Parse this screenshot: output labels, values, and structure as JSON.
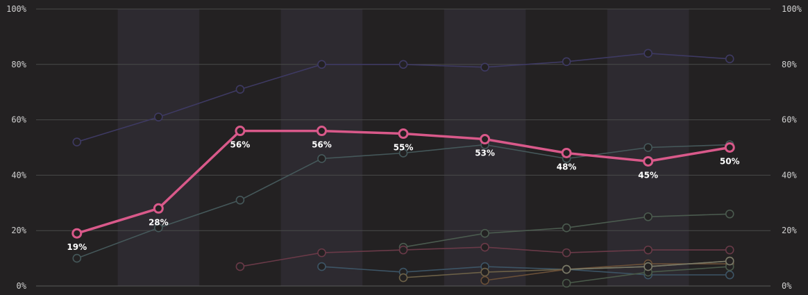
{
  "chart_data": {
    "type": "line",
    "x_count": 9,
    "ylim": [
      0,
      100
    ],
    "y_ticks": [
      0,
      20,
      40,
      60,
      80,
      100
    ],
    "y_tick_labels": [
      "0%",
      "20%",
      "40%",
      "60%",
      "80%",
      "100%"
    ],
    "grid": true,
    "legend": "none",
    "background_color": "#232122",
    "band_color": "#2d2a30",
    "highlight": {
      "color": "#d9598a",
      "values": [
        19,
        28,
        56,
        56,
        55,
        53,
        48,
        45,
        50
      ],
      "labels": [
        "19%",
        "28%",
        "56%",
        "56%",
        "55%",
        "53%",
        "48%",
        "45%",
        "50%"
      ]
    },
    "series": [
      {
        "color": "#3e3a63",
        "values": [
          52,
          61,
          71,
          80,
          80,
          79,
          81,
          84,
          82
        ]
      },
      {
        "color": "#45585a",
        "values": [
          10,
          21,
          31,
          46,
          48,
          51,
          46,
          50,
          51
        ]
      },
      {
        "color": "#4b5b4f",
        "values": [
          null,
          null,
          null,
          null,
          14,
          19,
          21,
          25,
          26
        ]
      },
      {
        "color": "#6a3a48",
        "values": [
          null,
          null,
          7,
          12,
          13,
          14,
          12,
          13,
          13
        ]
      },
      {
        "color": "#3d5566",
        "values": [
          null,
          null,
          null,
          7,
          5,
          7,
          6,
          4,
          4
        ]
      },
      {
        "color": "#6e6248",
        "values": [
          null,
          null,
          null,
          null,
          3,
          5,
          6,
          7,
          9
        ]
      },
      {
        "color": "#6b5038",
        "values": [
          null,
          null,
          null,
          null,
          null,
          2,
          6,
          8,
          8
        ]
      },
      {
        "color": "#4a5a4a",
        "values": [
          null,
          null,
          null,
          null,
          null,
          null,
          1,
          5,
          7
        ]
      },
      {
        "color": "#7a7a68",
        "values": [
          null,
          null,
          null,
          null,
          null,
          null,
          6,
          7,
          9
        ]
      }
    ]
  }
}
